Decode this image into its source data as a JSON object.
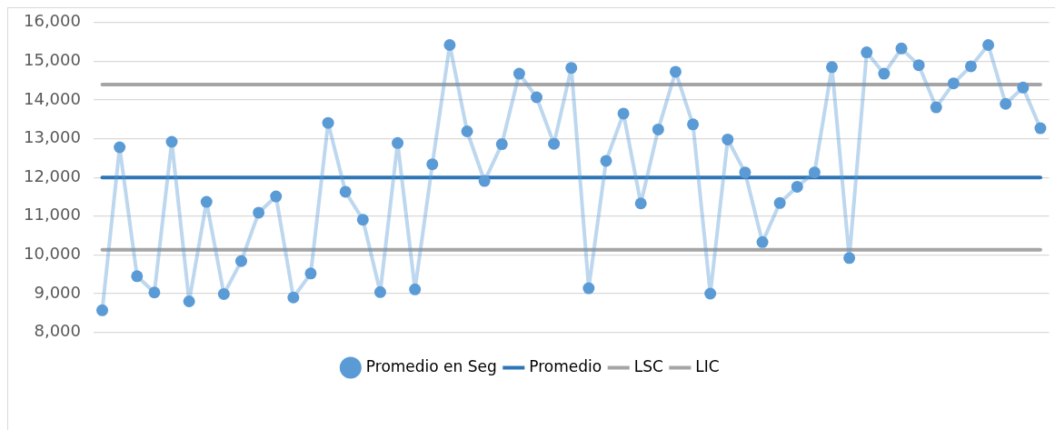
{
  "chart_data": {
    "type": "line",
    "categories": [
      null,
      null,
      null,
      null,
      null,
      null,
      null,
      null,
      null,
      null,
      null,
      null,
      null,
      null,
      null,
      null,
      null,
      null,
      null,
      null,
      null,
      null,
      null,
      null,
      null,
      null,
      null,
      null,
      null,
      null,
      null,
      null,
      null,
      null,
      null,
      null,
      null,
      null,
      null,
      null,
      null,
      null,
      null,
      null,
      null,
      null,
      null,
      null,
      null,
      null,
      null,
      null,
      null,
      null,
      null
    ],
    "ylim": [
      8000,
      16000
    ],
    "yticks": [
      {
        "value": 8000,
        "label": "8,000"
      },
      {
        "value": 9000,
        "label": "9,000"
      },
      {
        "value": 10000,
        "label": "10,000"
      },
      {
        "value": 11000,
        "label": "11,000"
      },
      {
        "value": 12000,
        "label": "12,000"
      },
      {
        "value": 13000,
        "label": "13,000"
      },
      {
        "value": 14000,
        "label": "14,000"
      },
      {
        "value": 15000,
        "label": "15,000"
      },
      {
        "value": 16000,
        "label": "16,000"
      }
    ],
    "grid": "y",
    "legend": "bottom",
    "line_style": "solid",
    "series": [
      {
        "name": "Promedio en Seg",
        "color": "#5b9bd5",
        "marker": "circle",
        "values": [
          8570,
          12780,
          9450,
          9030,
          12920,
          8800,
          11370,
          8990,
          9840,
          11090,
          11510,
          8900,
          9520,
          13410,
          11630,
          10910,
          9040,
          12890,
          9110,
          12340,
          15420,
          13190,
          11910,
          12860,
          14680,
          14070,
          12870,
          14830,
          9140,
          12430,
          13650,
          11330,
          13240,
          14730,
          13370,
          9000,
          12980,
          12130,
          10330,
          11340,
          11760,
          12130,
          14850,
          9920,
          15230,
          14680,
          15330,
          14900,
          13810,
          14430,
          14870,
          15420,
          13900,
          14320,
          13270
        ]
      },
      {
        "name": "Promedio",
        "color": "#2e75b6",
        "marker": "none",
        "values": [
          12000,
          12000,
          12000,
          12000,
          12000,
          12000,
          12000,
          12000,
          12000,
          12000,
          12000,
          12000,
          12000,
          12000,
          12000,
          12000,
          12000,
          12000,
          12000,
          12000,
          12000,
          12000,
          12000,
          12000,
          12000,
          12000,
          12000,
          12000,
          12000,
          12000,
          12000,
          12000,
          12000,
          12000,
          12000,
          12000,
          12000,
          12000,
          12000,
          12000,
          12000,
          12000,
          12000,
          12000,
          12000,
          12000,
          12000,
          12000,
          12000,
          12000,
          12000,
          12000,
          12000,
          12000,
          12000
        ]
      },
      {
        "name": "LSC",
        "color": "#a5a5a5",
        "marker": "none",
        "values": [
          14400,
          14400,
          14400,
          14400,
          14400,
          14400,
          14400,
          14400,
          14400,
          14400,
          14400,
          14400,
          14400,
          14400,
          14400,
          14400,
          14400,
          14400,
          14400,
          14400,
          14400,
          14400,
          14400,
          14400,
          14400,
          14400,
          14400,
          14400,
          14400,
          14400,
          14400,
          14400,
          14400,
          14400,
          14400,
          14400,
          14400,
          14400,
          14400,
          14400,
          14400,
          14400,
          14400,
          14400,
          14400,
          14400,
          14400,
          14400,
          14400,
          14400,
          14400,
          14400,
          14400,
          14400,
          14400
        ]
      },
      {
        "name": "LIC",
        "color": "#a5a5a5",
        "marker": "none",
        "values": [
          10130,
          10130,
          10130,
          10130,
          10130,
          10130,
          10130,
          10130,
          10130,
          10130,
          10130,
          10130,
          10130,
          10130,
          10130,
          10130,
          10130,
          10130,
          10130,
          10130,
          10130,
          10130,
          10130,
          10130,
          10130,
          10130,
          10130,
          10130,
          10130,
          10130,
          10130,
          10130,
          10130,
          10130,
          10130,
          10130,
          10130,
          10130,
          10130,
          10130,
          10130,
          10130,
          10130,
          10130,
          10130,
          10130,
          10130,
          10130,
          10130,
          10130,
          10130,
          10130,
          10130,
          10130,
          10130
        ]
      }
    ]
  }
}
